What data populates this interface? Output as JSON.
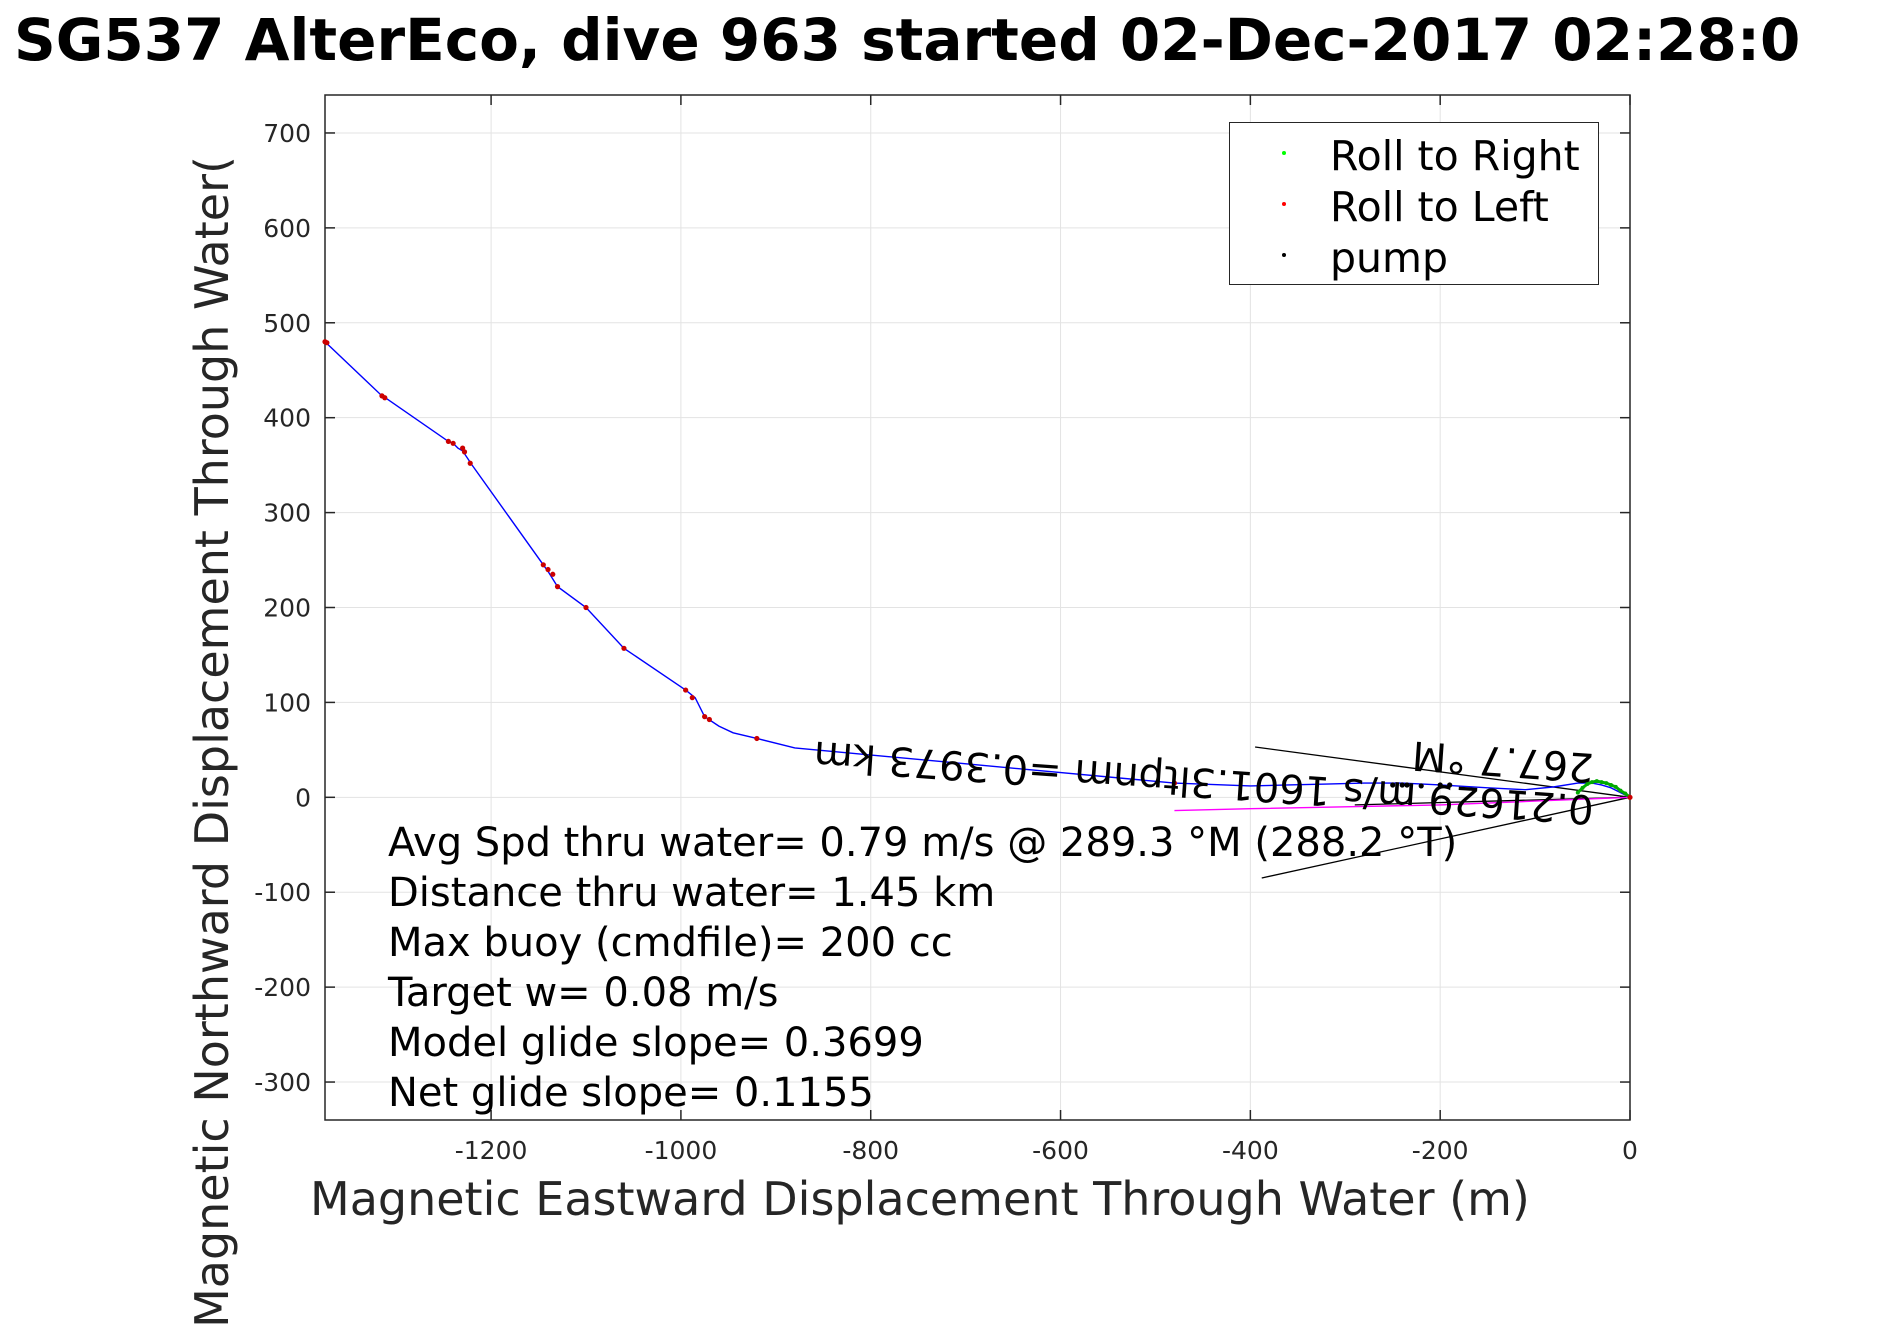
{
  "chart_data": {
    "type": "line",
    "title": "SG537 AlterEco, dive 963 started 02-Dec-2017 02:28:0",
    "xlabel": "Magnetic Eastward Displacement Through Water (m)",
    "ylabel": "Magnetic Northward Displacement Through Water(",
    "xlim": [
      -1375,
      0
    ],
    "ylim": [
      -340,
      740
    ],
    "xticks": [
      -1200,
      -1000,
      -800,
      -600,
      -400,
      -200,
      0
    ],
    "yticks": [
      -300,
      -200,
      -100,
      0,
      100,
      200,
      300,
      400,
      500,
      600,
      700
    ],
    "grid": true,
    "legend_position": "top-right",
    "legend": [
      {
        "label": "Roll to Right",
        "color": "#00ff00"
      },
      {
        "label": "Roll to Left",
        "color": "#ff0000"
      },
      {
        "label": "pump",
        "color": "#000000"
      }
    ],
    "series": [
      {
        "color": "#0000ff",
        "x": [
          0,
          -10,
          -20,
          -30,
          -40,
          -55,
          -80,
          -110,
          -150,
          -200,
          -240,
          -280,
          -320,
          -360,
          -400,
          -480,
          -880,
          -920,
          -945,
          -960,
          -975,
          -985,
          -995,
          -1060,
          -1100,
          -1130,
          -1140,
          -1145,
          -1220,
          -1230,
          -1235,
          -1240,
          -1245,
          -1310,
          -1315,
          -1375
        ],
        "y": [
          0,
          5,
          10,
          13,
          15,
          15,
          11,
          8,
          10,
          13,
          15,
          15,
          14,
          13,
          12,
          15,
          52,
          62,
          68,
          75,
          85,
          105,
          113,
          157,
          200,
          222,
          238,
          245,
          350,
          365,
          368,
          373,
          375,
          420,
          423,
          480
        ]
      },
      {
        "color": "#ff00ff",
        "x": [
          0,
          -100,
          -200,
          -300,
          -400,
          -480
        ],
        "y": [
          0,
          -4,
          -8,
          -10,
          -12,
          -14
        ]
      }
    ],
    "roll_right_points": {
      "color": "#00aa00",
      "x": [
        0,
        -5,
        -10,
        -15,
        -20,
        -25,
        -30,
        -35,
        -40,
        -45,
        -50,
        -55
      ],
      "y": [
        0,
        4,
        7,
        11,
        13,
        15,
        16,
        17,
        16,
        14,
        10,
        5
      ]
    },
    "roll_left_points": {
      "color": "#cc0000",
      "x": [
        -1375,
        -1373,
        -1315,
        -1312,
        -1245,
        -1240,
        -1230,
        -1228,
        -1222,
        -1145,
        -1140,
        -1135,
        -1130,
        -1100,
        -1060,
        -995,
        -988,
        -975,
        -970,
        -920,
        -480,
        0
      ],
      "y": [
        480,
        479,
        423,
        421,
        375,
        373,
        368,
        364,
        352,
        245,
        240,
        235,
        222,
        200,
        157,
        113,
        105,
        85,
        82,
        62,
        15,
        0
      ]
    },
    "pump_points": {
      "color": "#000000",
      "x": [
        -250,
        -240,
        -235,
        -220,
        -200,
        -190
      ],
      "y": [
        13,
        13,
        13,
        12,
        13,
        13
      ]
    },
    "annotation_lines": [
      {
        "x": [
          -395,
          0
        ],
        "y": [
          53,
          0
        ]
      },
      {
        "x": [
          -388,
          0
        ],
        "y": [
          -85,
          0
        ]
      },
      {
        "x": [
          -290,
          0
        ],
        "y": [
          -8,
          0
        ]
      }
    ],
    "stats_lines": [
      "Avg Spd thru water=  0.79 m/s @ 289.3 °M (288.2 °T)",
      "Distance thru water=  1.45 km",
      "Max buoy (cmdfile)= 200 cc",
      "Target w= 0.08 m/s",
      "Model glide slope= 0.3699",
      "Net glide slope= 0.1155"
    ],
    "inverted_labels": [
      "0.21629 m/s 1601.3ltpnm =0.3973 km",
      "267.7 °M"
    ]
  }
}
